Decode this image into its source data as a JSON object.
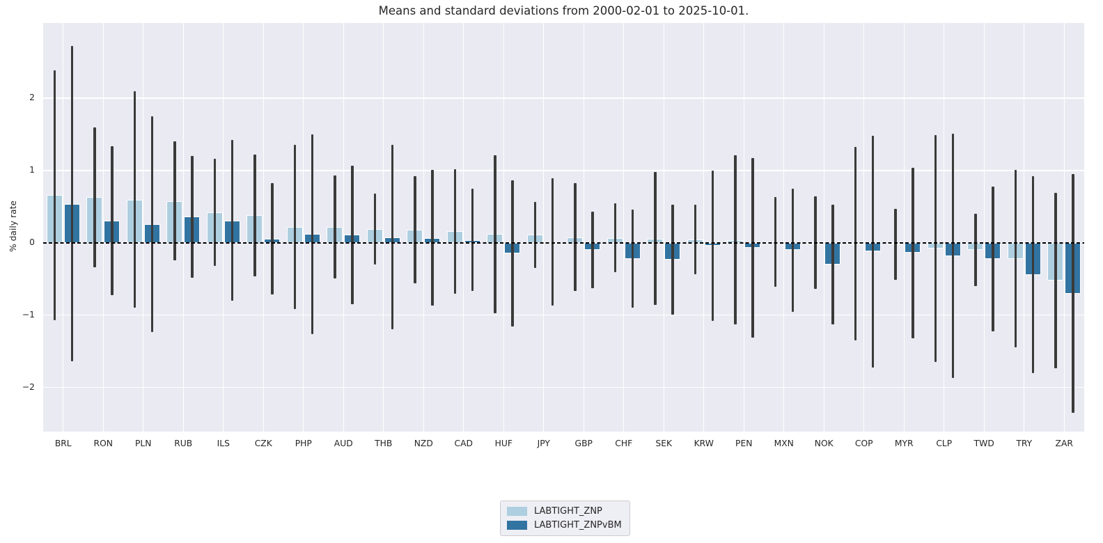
{
  "chart_data": {
    "type": "bar",
    "title": "Means and standard deviations from 2000-02-01 to 2025-10-01.",
    "ylabel": "% daily rate",
    "xlabel": "",
    "legend_position": "bottom-center",
    "grid": true,
    "error_bars": "mean ± 1 standard deviation",
    "zero_line": "dashed black",
    "ylim": [
      -2.61,
      3.04
    ],
    "yticks": [
      {
        "value": 2,
        "label": "2"
      },
      {
        "value": 1,
        "label": "1"
      },
      {
        "value": 0,
        "label": "0"
      },
      {
        "value": -1,
        "label": "−1"
      },
      {
        "value": -2,
        "label": "−2"
      }
    ],
    "categories": [
      "BRL",
      "RON",
      "PLN",
      "RUB",
      "ILS",
      "CZK",
      "PHP",
      "AUD",
      "THB",
      "NZD",
      "CAD",
      "HUF",
      "JPY",
      "GBP",
      "CHF",
      "SEK",
      "KRW",
      "PEN",
      "MXN",
      "NOK",
      "COP",
      "MYR",
      "CLP",
      "TWD",
      "TRY",
      "ZAR"
    ],
    "series": [
      {
        "name": "LABTIGHT_ZNP",
        "color": "#aecfe0",
        "means": [
          0.66,
          0.63,
          0.6,
          0.58,
          0.42,
          0.38,
          0.22,
          0.22,
          0.19,
          0.18,
          0.16,
          0.12,
          0.11,
          0.08,
          0.07,
          0.06,
          0.05,
          0.04,
          0.01,
          0.0,
          -0.01,
          -0.02,
          -0.08,
          -0.1,
          -0.22,
          -0.52
        ],
        "stds": [
          1.73,
          0.97,
          1.5,
          0.82,
          0.74,
          0.84,
          1.14,
          0.71,
          0.49,
          0.74,
          0.86,
          1.09,
          0.46,
          0.75,
          0.48,
          0.92,
          0.48,
          1.17,
          0.62,
          0.64,
          1.34,
          0.49,
          1.57,
          0.5,
          1.23,
          1.21
        ]
      },
      {
        "name": "LABTIGHT_ZNPvBM",
        "color": "#3274a1",
        "means": [
          0.54,
          0.31,
          0.26,
          0.36,
          0.31,
          0.06,
          0.12,
          0.11,
          0.08,
          0.07,
          0.04,
          -0.15,
          0.01,
          -0.1,
          -0.22,
          -0.23,
          -0.04,
          -0.07,
          -0.1,
          -0.3,
          -0.12,
          -0.14,
          -0.18,
          -0.22,
          -0.44,
          -0.7
        ],
        "stds": [
          2.18,
          1.03,
          1.49,
          0.84,
          1.11,
          0.77,
          1.38,
          0.96,
          1.28,
          0.94,
          0.71,
          1.01,
          0.88,
          0.53,
          0.68,
          0.76,
          1.04,
          1.24,
          0.85,
          0.83,
          1.6,
          1.18,
          1.69,
          1.0,
          1.36,
          1.65
        ]
      }
    ],
    "colors": {
      "plot_background": "#eaeaf2",
      "figure_background": "#ffffff",
      "gridline": "#ffffff",
      "error_bar": "#3a3a3a",
      "text": "#262626",
      "zero_line": "#000000",
      "legend_background": "#eeeef5",
      "legend_border": "#cccccc"
    }
  }
}
